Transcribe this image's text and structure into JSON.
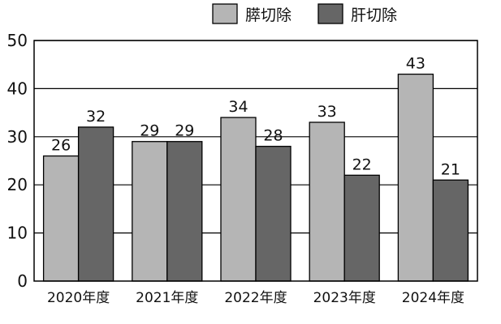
{
  "chart_data": {
    "type": "bar",
    "categories": [
      "2020年度",
      "2021年度",
      "2022年度",
      "2023年度",
      "2024年度"
    ],
    "series": [
      {
        "name": "膵切除",
        "values": [
          26,
          29,
          34,
          33,
          43
        ],
        "color": "#b5b5b5"
      },
      {
        "name": "肝切除",
        "values": [
          32,
          29,
          28,
          22,
          21
        ],
        "color": "#666666"
      }
    ],
    "ylim": [
      0,
      50
    ],
    "yticks": [
      0,
      10,
      20,
      30,
      40,
      50
    ],
    "grid": true,
    "legend_position": "top-right",
    "title": "",
    "xlabel": "",
    "ylabel": ""
  }
}
